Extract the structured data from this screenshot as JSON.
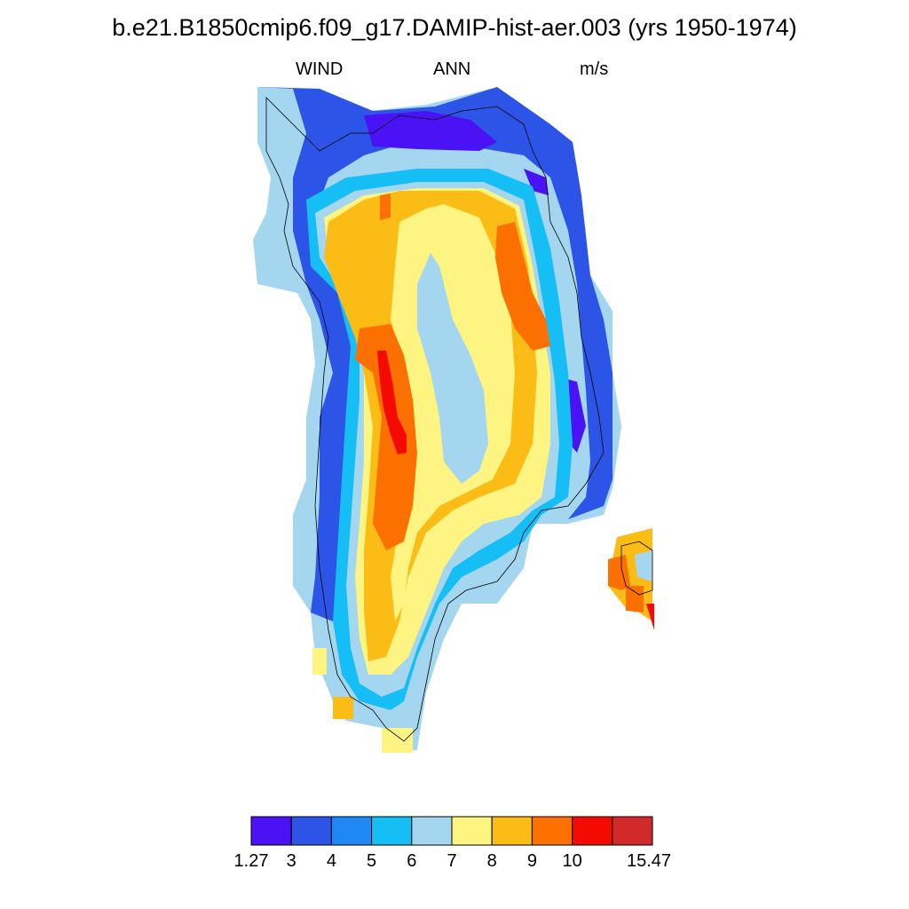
{
  "title": "b.e21.B1850cmip6.f09_g17.DAMIP-hist-aer.003 (yrs 1950-1974)",
  "subtitle": {
    "left": "WIND",
    "center": "ANN",
    "right": "m/s"
  },
  "colorbar": {
    "labels": [
      "1.27",
      "3",
      "4",
      "5",
      "6",
      "7",
      "8",
      "9",
      "10",
      "15.47"
    ],
    "colors": [
      "#4b12f5",
      "#2c54e6",
      "#1f88f5",
      "#15bef5",
      "#a5d6f0",
      "#fdf482",
      "#fbbc16",
      "#fb7000",
      "#f50a00",
      "#d22a2a"
    ]
  },
  "map": {
    "region": "Greenland",
    "variable": "WIND",
    "period": "ANN",
    "units": "m/s",
    "coastline_color": "#000000"
  }
}
